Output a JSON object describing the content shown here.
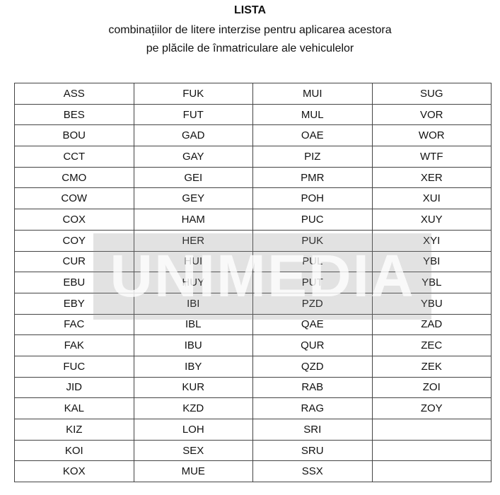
{
  "document": {
    "title": "LISTA",
    "subtitle_line1": "combinațiilor de litere interzise pentru aplicarea acestora",
    "subtitle_line2": "pe plăcile de înmatriculare ale vehiculelor"
  },
  "watermark": "UNIMEDIA",
  "table": {
    "rows": [
      [
        "ASS",
        "FUK",
        "MUI",
        "SUG"
      ],
      [
        "BES",
        "FUT",
        "MUL",
        "VOR"
      ],
      [
        "BOU",
        "GAD",
        "OAE",
        "WOR"
      ],
      [
        "CCT",
        "GAY",
        "PIZ",
        "WTF"
      ],
      [
        "CMO",
        "GEI",
        "PMR",
        "XER"
      ],
      [
        "COW",
        "GEY",
        "POH",
        "XUI"
      ],
      [
        "COX",
        "HAM",
        "PUC",
        "XUY"
      ],
      [
        "COY",
        "HER",
        "PUK",
        "XYI"
      ],
      [
        "CUR",
        "HUI",
        "PUL",
        "YBI"
      ],
      [
        "EBU",
        "HUY",
        "PUT",
        "YBL"
      ],
      [
        "EBY",
        "IBI",
        "PZD",
        "YBU"
      ],
      [
        "FAC",
        "IBL",
        "QAE",
        "ZAD"
      ],
      [
        "FAK",
        "IBU",
        "QUR",
        "ZEC"
      ],
      [
        "FUC",
        "IBY",
        "QZD",
        "ZEK"
      ],
      [
        "JID",
        "KUR",
        "RAB",
        "ZOI"
      ],
      [
        "KAL",
        "KZD",
        "RAG",
        "ZOY"
      ],
      [
        "KIZ",
        "LOH",
        "SRI",
        ""
      ],
      [
        "KOI",
        "SEX",
        "SRU",
        ""
      ],
      [
        "KOX",
        "MUE",
        "SSX",
        ""
      ]
    ]
  }
}
